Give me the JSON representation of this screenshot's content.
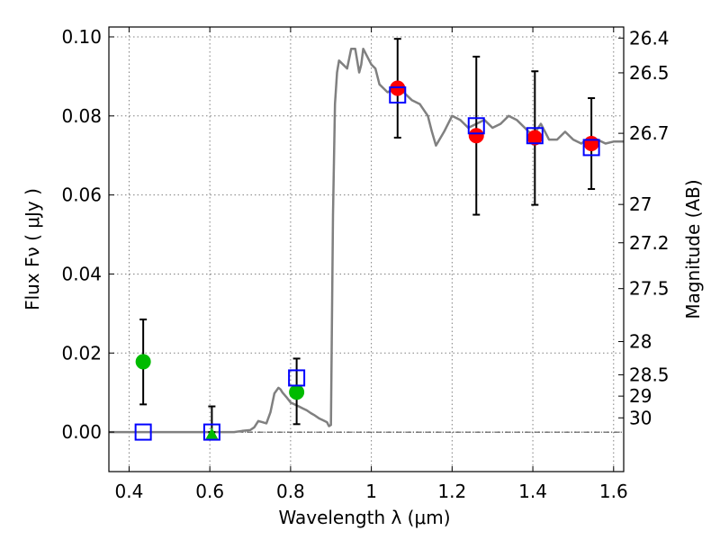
{
  "chart_data": {
    "type": "scatter",
    "xlabel": "Wavelength  λ (μm)",
    "ylabel": "Flux  Fν  ( μJy )",
    "y2label": "Magnitude (AB)",
    "xlim": [
      0.35,
      1.625
    ],
    "ylim": [
      -0.01,
      0.1025
    ],
    "grid": true,
    "x_ticks": [
      0.4,
      0.6,
      0.8,
      1.0,
      1.2,
      1.4,
      1.6
    ],
    "x_tick_labels": [
      "0.4",
      "0.6",
      "0.8",
      "1",
      "1.2",
      "1.4",
      "1.6"
    ],
    "y_ticks": [
      0.0,
      0.02,
      0.04,
      0.06,
      0.08,
      0.1
    ],
    "y_tick_labels": [
      "0.00",
      "0.02",
      "0.04",
      "0.06",
      "0.08",
      "0.10"
    ],
    "mag_ticks": [
      {
        "label": "26.4",
        "flux": 0.0997
      },
      {
        "label": "26.5",
        "flux": 0.0909
      },
      {
        "label": "26.7",
        "flux": 0.0756
      },
      {
        "label": "27",
        "flux": 0.0576
      },
      {
        "label": "27.2",
        "flux": 0.0479
      },
      {
        "label": "27.5",
        "flux": 0.0363
      },
      {
        "label": "28",
        "flux": 0.0229
      },
      {
        "label": "28.5",
        "flux": 0.0145
      },
      {
        "label": "29",
        "flux": 0.0091
      },
      {
        "label": "30",
        "flux": 0.0036
      }
    ],
    "colors": {
      "model": "#808080",
      "detected": "#ff0000",
      "upper": "#00bb00",
      "synthetic": "#0000ff",
      "errorbar": "#000000",
      "zeroline": "#000000"
    },
    "series": [
      {
        "marker": "line",
        "x": [
          0.35,
          0.55,
          0.63,
          0.66,
          0.68,
          0.7,
          0.71,
          0.72,
          0.73,
          0.74,
          0.75,
          0.76,
          0.77,
          0.775,
          0.78,
          0.79,
          0.8,
          0.81,
          0.82,
          0.83,
          0.84,
          0.85,
          0.86,
          0.87,
          0.88,
          0.89,
          0.895,
          0.9,
          0.905,
          0.91,
          0.915,
          0.92,
          0.93,
          0.94,
          0.95,
          0.96,
          0.97,
          0.975,
          0.98,
          0.99,
          1.0,
          1.01,
          1.02,
          1.04,
          1.06,
          1.08,
          1.1,
          1.12,
          1.14,
          1.15,
          1.16,
          1.18,
          1.2,
          1.22,
          1.24,
          1.26,
          1.28,
          1.3,
          1.32,
          1.34,
          1.36,
          1.38,
          1.4,
          1.42,
          1.44,
          1.46,
          1.48,
          1.5,
          1.52,
          1.54,
          1.56,
          1.58,
          1.6,
          1.625
        ],
        "y": [
          0.0,
          0.0,
          0.0,
          0.0,
          0.0003,
          0.0005,
          0.0012,
          0.0028,
          0.0025,
          0.0022,
          0.005,
          0.0098,
          0.0112,
          0.0108,
          0.01,
          0.0088,
          0.0075,
          0.007,
          0.0065,
          0.006,
          0.0055,
          0.0048,
          0.0042,
          0.0035,
          0.003,
          0.0025,
          0.0015,
          0.0018,
          0.055,
          0.083,
          0.091,
          0.094,
          0.093,
          0.092,
          0.097,
          0.097,
          0.091,
          0.093,
          0.097,
          0.095,
          0.093,
          0.092,
          0.088,
          0.086,
          0.087,
          0.086,
          0.084,
          0.083,
          0.08,
          0.076,
          0.0725,
          0.076,
          0.08,
          0.079,
          0.077,
          0.078,
          0.079,
          0.077,
          0.078,
          0.08,
          0.079,
          0.077,
          0.075,
          0.078,
          0.074,
          0.074,
          0.076,
          0.074,
          0.073,
          0.0745,
          0.074,
          0.073,
          0.0735,
          0.0735
        ]
      },
      {
        "marker": "red-circle",
        "x": [
          1.065,
          1.26,
          1.405,
          1.545
        ],
        "y": [
          0.087,
          0.075,
          0.0745,
          0.073
        ],
        "err_low": [
          0.0745,
          0.055,
          0.0575,
          0.0615
        ],
        "err_high": [
          0.0995,
          0.095,
          0.0913,
          0.0845
        ]
      },
      {
        "marker": "green-circle",
        "x": [
          0.435,
          0.815
        ],
        "y": [
          0.0178,
          0.0101
        ],
        "err_low": [
          0.007,
          0.002
        ],
        "err_high": [
          0.0285,
          0.0186
        ]
      },
      {
        "marker": "green-triangle",
        "x": [
          0.605
        ],
        "y": [
          -0.0005
        ],
        "err_low": [
          0.0
        ],
        "err_high": [
          0.0065
        ]
      },
      {
        "marker": "blue-square",
        "x": [
          0.435,
          0.605,
          0.815,
          1.065,
          1.26,
          1.405,
          1.545
        ],
        "y": [
          0.0,
          0.0,
          0.0137,
          0.0853,
          0.0775,
          0.075,
          0.072
        ]
      }
    ]
  }
}
